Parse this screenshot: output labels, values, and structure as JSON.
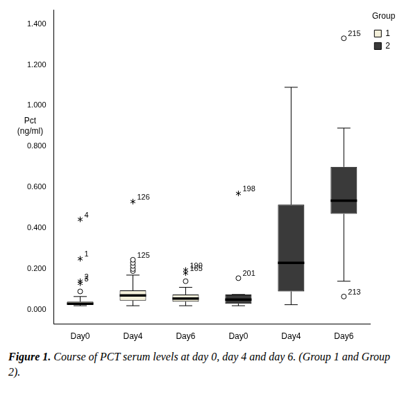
{
  "chart_data": {
    "type": "boxplot",
    "categories": [
      "Day0",
      "Day4",
      "Day6",
      "Day0",
      "Day4",
      "Day6"
    ],
    "ylabel": [
      "Pct",
      "(ng/ml)"
    ],
    "ylim": [
      -0.07,
      1.47
    ],
    "yticks": [
      {
        "value": 0,
        "label": "0.000"
      },
      {
        "value": 0.2,
        "label": "0.200"
      },
      {
        "value": 0.4,
        "label": "0.400"
      },
      {
        "value": 0.6,
        "label": "0.600"
      },
      {
        "value": 0.8,
        "label": "0.800"
      },
      {
        "value": 1.0,
        "label": "1.000"
      },
      {
        "value": 1.2,
        "label": "1.200"
      },
      {
        "value": 1.4,
        "label": "1.400"
      }
    ],
    "grid": false,
    "legend": "top right",
    "legend_title": "Group",
    "series": [
      {
        "name": "1",
        "color": "#f4f0da",
        "values": [
          {
            "min": 0.02,
            "q1": 0.025,
            "median": 0.03,
            "q3": 0.04,
            "max": 0.065,
            "outliers": [
              {
                "value": 0.09,
                "marker": "circle"
              },
              {
                "value": 0.13,
                "marker": "star",
                "label": "3"
              },
              {
                "value": 0.14,
                "marker": "star",
                "label": "2"
              },
              {
                "value": 0.25,
                "marker": "star",
                "label": "1"
              },
              {
                "value": 0.443,
                "marker": "star",
                "label": "4"
              }
            ]
          },
          {
            "min": 0.02,
            "q1": 0.045,
            "median": 0.07,
            "q3": 0.095,
            "max": 0.17,
            "outliers": [
              {
                "value": 0.19,
                "marker": "circle"
              },
              {
                "value": 0.2,
                "marker": "circle"
              },
              {
                "value": 0.215,
                "marker": "circle"
              },
              {
                "value": 0.23,
                "marker": "circle"
              },
              {
                "value": 0.245,
                "marker": "circle",
                "label": "125"
              },
              {
                "value": 0.53,
                "marker": "star",
                "label": "126"
              }
            ]
          },
          {
            "min": 0.02,
            "q1": 0.04,
            "median": 0.055,
            "q3": 0.075,
            "max": 0.11,
            "outliers": [
              {
                "value": 0.14,
                "marker": "circle"
              },
              {
                "value": 0.18,
                "marker": "star",
                "label": "165"
              },
              {
                "value": 0.195,
                "marker": "star",
                "label": "190"
              }
            ]
          },
          null,
          null,
          null
        ]
      },
      {
        "name": "2",
        "color": "#3a3a3a",
        "values": [
          null,
          null,
          null,
          {
            "min": 0.02,
            "q1": 0.03,
            "median": 0.05,
            "q3": 0.075,
            "max": 0.075,
            "outliers": [
              {
                "value": 0.155,
                "marker": "circle",
                "label": "201"
              },
              {
                "value": 0.57,
                "marker": "star",
                "label": "198"
              }
            ]
          },
          {
            "min": 0.025,
            "q1": 0.09,
            "median": 0.23,
            "q3": 0.515,
            "max": 1.09,
            "outliers": []
          },
          {
            "min": 0.14,
            "q1": 0.47,
            "median": 0.535,
            "q3": 0.7,
            "max": 0.89,
            "outliers": [
              {
                "value": 0.065,
                "marker": "circle",
                "label": "213"
              },
              {
                "value": 1.33,
                "marker": "circle",
                "label": "215"
              }
            ]
          }
        ]
      }
    ]
  },
  "caption": {
    "label": "Figure 1.",
    "text": "Course of PCT serum levels at day 0, day 4 and day 6. (Group 1 and Group 2)."
  }
}
